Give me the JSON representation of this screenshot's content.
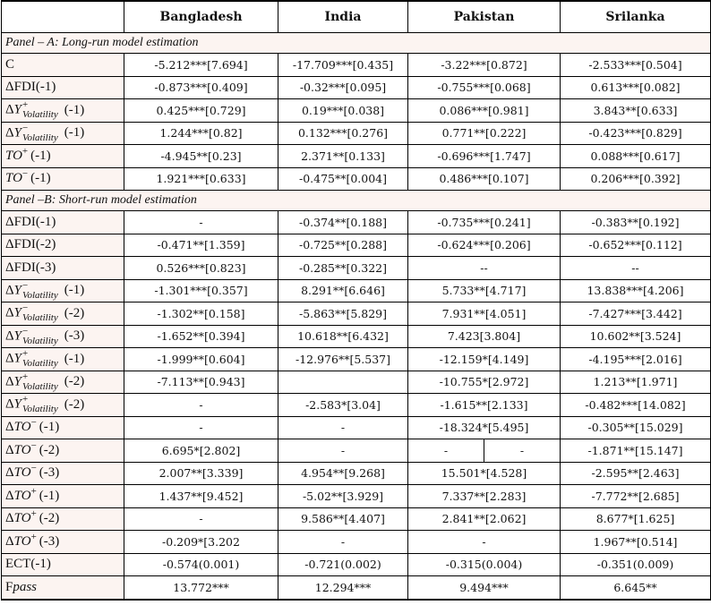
{
  "columns": [
    "",
    "Bangladesh",
    "India",
    "Pakistan",
    "Srilanka"
  ],
  "panels": [
    {
      "title": "Panel – A: Long-run model estimation",
      "rows": [
        {
          "label": {
            "text": "C"
          },
          "values": [
            "-5.212***[7.694]",
            "-17.709***[0.435]",
            "-3.22***[0.872]",
            "-2.533***[0.504]"
          ]
        },
        {
          "label": {
            "delta": "Δ",
            "text": "FDI",
            "lag": "(-1)"
          },
          "values": [
            "-0.873***[0.409]",
            "-0.32***[0.095]",
            "-0.755***[0.068]",
            "0.613***[0.082]"
          ]
        },
        {
          "label": {
            "delta": "Δ",
            "var": "Y",
            "sup": "+",
            "sub": "Volatility",
            "lag": "(-1)"
          },
          "values": [
            "0.425***[0.729]",
            "0.19***[0.038]",
            "0.086***[0.981]",
            "3.843**[0.633]"
          ]
        },
        {
          "label": {
            "delta": "Δ",
            "var": "Y",
            "sup": "−",
            "sub": "Volatility",
            "lag": "(-1)"
          },
          "values": [
            "1.244***[0.82]",
            "0.132***[0.276]",
            "0.771**[0.222]",
            "-0.423***[0.829]"
          ]
        },
        {
          "label": {
            "var": "TO",
            "sup1": "+",
            "lag": "(-1)"
          },
          "values": [
            "-4.945**[0.23]",
            "2.371**[0.133]",
            "-0.696***[1.747]",
            "0.088***[0.617]"
          ]
        },
        {
          "label": {
            "var": "TO",
            "sup1": "−",
            "lag": "(-1)"
          },
          "values": [
            "1.921***[0.633]",
            "-0.475**[0.004]",
            "0.486***[0.107]",
            "0.206***[0.392]"
          ]
        }
      ]
    },
    {
      "title": "Panel –B: Short-run model estimation",
      "rows": [
        {
          "label": {
            "delta": "Δ",
            "text": "FDI",
            "lag": "(-1)"
          },
          "values": [
            "-",
            "-0.374**[0.188]",
            "-0.735***[0.241]",
            "-0.383**[0.192]"
          ]
        },
        {
          "label": {
            "delta": "Δ",
            "text": "FDI",
            "lag": "(-2)"
          },
          "values": [
            "-0.471**[1.359]",
            "-0.725**[0.288]",
            "-0.624***[0.206]",
            "-0.652***[0.112]"
          ]
        },
        {
          "label": {
            "delta": "Δ",
            "text": "FDI",
            "lag": "(-3)"
          },
          "values": [
            "0.526***[0.823]",
            "-0.285**[0.322]",
            "--",
            "--"
          ]
        },
        {
          "label": {
            "delta": "Δ",
            "var": "Y",
            "sup": "−",
            "sub": "Volatility",
            "lag": "(-1)"
          },
          "values": [
            "-1.301***[0.357]",
            "8.291**[6.646]",
            "5.733**[4.717]",
            "13.838***[4.206]"
          ]
        },
        {
          "label": {
            "delta": "Δ",
            "var": "Y",
            "sup": "−",
            "sub": "Volatility",
            "lag": "(-2)"
          },
          "values": [
            "-1.302**[0.158]",
            "-5.863**[5.829]",
            "7.931**[4.051]",
            "-7.427***[3.442]"
          ]
        },
        {
          "label": {
            "delta": "Δ",
            "var": "Y",
            "sup": "−",
            "sub": "Volatility",
            "lag": "(-3)"
          },
          "values": [
            "-1.652**[0.394]",
            "10.618**[6.432]",
            "7.423[3.804]",
            "10.602**[3.524]"
          ]
        },
        {
          "label": {
            "delta": "Δ",
            "var": "Y",
            "sup": "+",
            "sub": "Volatility",
            "lag": "(-1)"
          },
          "values": [
            "-1.999**[0.604]",
            "-12.976**[5.537]",
            "-12.159*[4.149]",
            "-4.195***[2.016]"
          ]
        },
        {
          "label": {
            "delta": "Δ",
            "var": "Y",
            "sup": "+",
            "sub": "Volatility",
            "lag": "(-2)"
          },
          "values": [
            "-7.113**[0.943]",
            "",
            "-10.755*[2.972]",
            "1.213**[1.971]"
          ]
        },
        {
          "label": {
            "delta": "Δ",
            "var": "Y",
            "sup": "+",
            "sub": "Volatility",
            "lag": "(-2)"
          },
          "values": [
            "-",
            "-2.583*[3.04]",
            "-1.615**[2.133]",
            "-0.482***[14.082]"
          ]
        },
        {
          "label": {
            "delta": "Δ",
            "var": "TO",
            "sup1": "−",
            "lag": "(-1)"
          },
          "values": [
            "-",
            "-",
            "-18.324*[5.495]",
            "-0.305**[15.029]"
          ]
        },
        {
          "label": {
            "delta": "Δ",
            "var": "TO",
            "sup1": "−",
            "lag": "(-2)"
          },
          "values": [
            "6.695*[2.802]",
            "-",
            [
              "-",
              "-"
            ],
            "-1.871**[15.147]"
          ]
        },
        {
          "label": {
            "delta": "Δ",
            "var": "TO",
            "sup1": "−",
            "lag": "(-3)"
          },
          "values": [
            "2.007**[3.339]",
            "4.954**[9.268]",
            "15.501*[4.528]",
            "-2.595**[2.463]"
          ]
        },
        {
          "label": {
            "delta": "Δ",
            "var": "TO",
            "sup1": "+",
            "lag": "(-1)"
          },
          "values": [
            "1.437**[9.452]",
            "-5.02**[3.929]",
            "7.337**[2.283]",
            "-7.772**[2.685]"
          ]
        },
        {
          "label": {
            "delta": "Δ",
            "var": "TO",
            "sup1": "+",
            "lag": "(-2)"
          },
          "values": [
            "-",
            "9.586**[4.407]",
            "2.841**[2.062]",
            "8.677*[1.625]"
          ]
        },
        {
          "label": {
            "delta": "Δ",
            "var": "TO",
            "sup1": "+",
            "lag": "(-3)"
          },
          "values": [
            "-0.209*[3.202",
            "-",
            "-",
            "1.967**[0.514]"
          ]
        },
        {
          "label": {
            "text": "ECT",
            "lag": "(-1)"
          },
          "values": [
            "-0.574(0.001)",
            "-0.721(0.002)",
            "-0.315(0.004)",
            "-0.351(0.009)"
          ]
        },
        {
          "label": {
            "text": "F",
            "var": "pass"
          },
          "values": [
            "13.772***",
            "12.294***",
            "9.494***",
            "6.645**"
          ]
        }
      ]
    }
  ]
}
